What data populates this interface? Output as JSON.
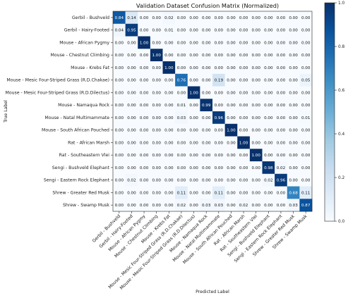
{
  "chart_data": {
    "type": "heatmap",
    "title": "Validation Dataset Confusion Matrix (Normalized)",
    "xlabel": "Predicted Label",
    "ylabel": "True Label",
    "labels": [
      "Gerbil - Bushveld",
      "Gerbil - Hairy-Footed",
      "Mouse - African Pygmy",
      "Mouse - Chestnut Climbing",
      "Mouse - Krebs Fat",
      "Mouse - Mesic Four-Striped Grass (R.D.Chakae)",
      "Mouse - Mesic Four-Striped Grass (R.D.Dilectus)",
      "Mouse - Namaqua Rock",
      "Mouse - Natal Multimammate",
      "Mouse - South African Pouched",
      "Rat - African Marsh",
      "Rat - Southeastern Vlei",
      "Sengi - Bushveld Elephant",
      "Sengi - Eastern Rock Elephant",
      "Shrew - Greater Red Musk",
      "Shrew - Swamp Musk"
    ],
    "matrix": [
      [
        0.84,
        0.14,
        0.0,
        0.0,
        0.02,
        0.0,
        0.0,
        0.0,
        0.0,
        0.0,
        0.0,
        0.0,
        0.0,
        0.0,
        0.0,
        0.0
      ],
      [
        0.04,
        0.95,
        0.0,
        0.0,
        0.01,
        0.0,
        0.0,
        0.0,
        0.0,
        0.0,
        0.0,
        0.0,
        0.0,
        0.0,
        0.0,
        0.0
      ],
      [
        0.0,
        0.0,
        1.0,
        0.0,
        0.0,
        0.0,
        0.0,
        0.0,
        0.0,
        0.0,
        0.0,
        0.0,
        0.0,
        0.0,
        0.0,
        0.0
      ],
      [
        0.0,
        0.0,
        0.0,
        1.0,
        0.0,
        0.0,
        0.0,
        0.0,
        0.0,
        0.0,
        0.0,
        0.0,
        0.0,
        0.0,
        0.0,
        0.0
      ],
      [
        0.0,
        0.0,
        0.0,
        0.0,
        1.0,
        0.0,
        0.0,
        0.0,
        0.0,
        0.0,
        0.0,
        0.0,
        0.0,
        0.0,
        0.0,
        0.0
      ],
      [
        0.0,
        0.0,
        0.0,
        0.0,
        0.0,
        0.76,
        0.0,
        0.0,
        0.19,
        0.0,
        0.0,
        0.0,
        0.0,
        0.0,
        0.0,
        0.05
      ],
      [
        0.0,
        0.0,
        0.0,
        0.0,
        0.0,
        0.0,
        1.0,
        0.0,
        0.0,
        0.0,
        0.0,
        0.0,
        0.0,
        0.0,
        0.0,
        0.0
      ],
      [
        0.0,
        0.0,
        0.0,
        0.0,
        0.0,
        0.01,
        0.0,
        0.99,
        0.0,
        0.0,
        0.0,
        0.0,
        0.0,
        0.0,
        0.0,
        0.0
      ],
      [
        0.0,
        0.0,
        0.0,
        0.0,
        0.0,
        0.03,
        0.0,
        0.0,
        0.96,
        0.0,
        0.0,
        0.0,
        0.0,
        0.0,
        0.0,
        0.01
      ],
      [
        0.0,
        0.0,
        0.0,
        0.0,
        0.0,
        0.0,
        0.0,
        0.0,
        0.0,
        1.0,
        0.0,
        0.0,
        0.0,
        0.0,
        0.0,
        0.0
      ],
      [
        0.0,
        0.0,
        0.0,
        0.0,
        0.0,
        0.0,
        0.0,
        0.0,
        0.0,
        0.0,
        1.0,
        0.0,
        0.0,
        0.0,
        0.0,
        0.0
      ],
      [
        0.0,
        0.0,
        0.0,
        0.0,
        0.0,
        0.0,
        0.0,
        0.0,
        0.0,
        0.0,
        0.0,
        1.0,
        0.0,
        0.0,
        0.0,
        0.0
      ],
      [
        0.0,
        0.0,
        0.0,
        0.0,
        0.0,
        0.0,
        0.0,
        0.0,
        0.0,
        0.0,
        0.0,
        0.0,
        0.98,
        0.02,
        0.0,
        0.0
      ],
      [
        0.0,
        0.02,
        0.0,
        0.0,
        0.0,
        0.0,
        0.0,
        0.0,
        0.0,
        0.0,
        0.0,
        0.0,
        0.02,
        0.96,
        0.0,
        0.0
      ],
      [
        0.0,
        0.0,
        0.0,
        0.0,
        0.0,
        0.11,
        0.0,
        0.0,
        0.11,
        0.0,
        0.0,
        0.0,
        0.0,
        0.0,
        0.68,
        0.11
      ],
      [
        0.0,
        0.0,
        0.0,
        0.0,
        0.0,
        0.02,
        0.0,
        0.03,
        0.03,
        0.0,
        0.02,
        0.0,
        0.0,
        0.0,
        0.03,
        0.87
      ]
    ],
    "colorbar": {
      "colormap": "Blues",
      "range": [
        0.0,
        1.0
      ],
      "ticks": [
        "0.0",
        "0.2",
        "0.4",
        "0.6",
        "0.8",
        "1.0"
      ],
      "colors": {
        "low": "#f7fbff",
        "high": "#08306b"
      }
    },
    "grid": false,
    "legend": "colorbar-right"
  }
}
